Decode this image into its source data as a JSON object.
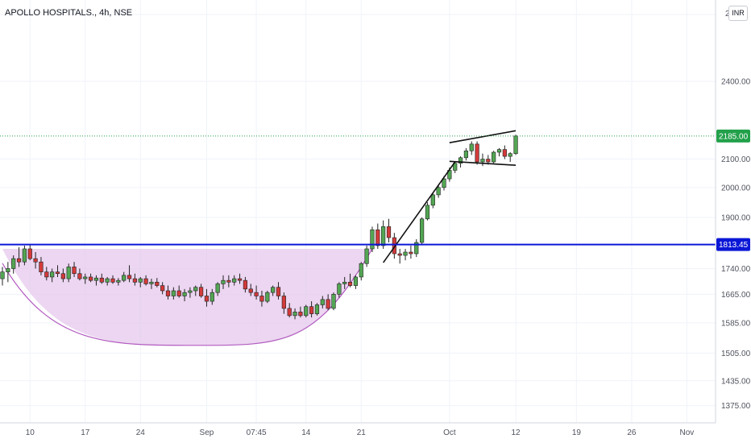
{
  "header": {
    "title": "APOLLO HOSPITALS., 4h, NSE",
    "currency": "INR"
  },
  "colors": {
    "up": "#53a653",
    "down": "#d33a3a",
    "wick": "#222222",
    "resistance": "#0b17d6",
    "cup_fill": "#e6c8ec",
    "cup_stroke": "#b25bc0",
    "last_price": "#22a04a",
    "grid": "#f0f3fa",
    "axis_text": "#50535e"
  },
  "chart_data": {
    "type": "candlestick",
    "title": "APOLLO HOSPITALS., 4h, NSE",
    "y_scale": "log",
    "ylim": [
      1335,
      2760
    ],
    "y_ticks": [
      {
        "value": 2400,
        "label": "2400.00"
      },
      {
        "value": 2100,
        "label": "2100.00"
      },
      {
        "value": 2000,
        "label": "2000.00"
      },
      {
        "value": 1900,
        "label": "1900.00"
      },
      {
        "value": 1740,
        "label": "1740.00"
      },
      {
        "value": 1665,
        "label": "1665.00"
      },
      {
        "value": 1585,
        "label": "1585.00"
      },
      {
        "value": 1505,
        "label": "1505.00"
      },
      {
        "value": 1435,
        "label": "1435.00"
      },
      {
        "value": 1375,
        "label": "1375.00"
      }
    ],
    "top_partial_label": "2",
    "x_range": [
      0,
      126
    ],
    "x_ticks": [
      {
        "i": 5,
        "label": "10"
      },
      {
        "i": 15,
        "label": "17"
      },
      {
        "i": 25,
        "label": "24"
      },
      {
        "i": 37,
        "label": "Sep"
      },
      {
        "i": 46,
        "label": "07:45"
      },
      {
        "i": 55,
        "label": "14"
      },
      {
        "i": 65,
        "label": "21"
      },
      {
        "i": 81,
        "label": "Oct"
      },
      {
        "i": 93,
        "label": "12"
      },
      {
        "i": 104,
        "label": "19"
      },
      {
        "i": 114,
        "label": "26"
      },
      {
        "i": 124,
        "label": "Nov"
      }
    ],
    "resistance_level": {
      "value": 1813.45,
      "label": "1813.45"
    },
    "last_price": {
      "value": 2185.0,
      "label": "2185.00"
    },
    "candles": [
      [
        1710,
        1745,
        1690,
        1730
      ],
      [
        1730,
        1760,
        1700,
        1740
      ],
      [
        1740,
        1780,
        1725,
        1770
      ],
      [
        1770,
        1805,
        1745,
        1760
      ],
      [
        1760,
        1810,
        1750,
        1800
      ],
      [
        1800,
        1815,
        1765,
        1770
      ],
      [
        1770,
        1790,
        1740,
        1760
      ],
      [
        1760,
        1775,
        1720,
        1730
      ],
      [
        1730,
        1745,
        1705,
        1715
      ],
      [
        1715,
        1740,
        1700,
        1730
      ],
      [
        1730,
        1750,
        1715,
        1725
      ],
      [
        1725,
        1740,
        1700,
        1710
      ],
      [
        1710,
        1755,
        1700,
        1745
      ],
      [
        1745,
        1760,
        1715,
        1725
      ],
      [
        1725,
        1740,
        1705,
        1710
      ],
      [
        1710,
        1725,
        1695,
        1715
      ],
      [
        1715,
        1725,
        1700,
        1705
      ],
      [
        1705,
        1720,
        1690,
        1712
      ],
      [
        1712,
        1725,
        1695,
        1700
      ],
      [
        1700,
        1715,
        1690,
        1710
      ],
      [
        1710,
        1720,
        1695,
        1700
      ],
      [
        1700,
        1712,
        1690,
        1705
      ],
      [
        1705,
        1730,
        1700,
        1720
      ],
      [
        1720,
        1750,
        1700,
        1710
      ],
      [
        1710,
        1725,
        1690,
        1700
      ],
      [
        1700,
        1715,
        1685,
        1710
      ],
      [
        1710,
        1720,
        1690,
        1695
      ],
      [
        1695,
        1710,
        1680,
        1700
      ],
      [
        1700,
        1712,
        1685,
        1690
      ],
      [
        1690,
        1700,
        1665,
        1675
      ],
      [
        1675,
        1690,
        1650,
        1660
      ],
      [
        1660,
        1685,
        1650,
        1675
      ],
      [
        1675,
        1690,
        1655,
        1660
      ],
      [
        1660,
        1680,
        1645,
        1670
      ],
      [
        1670,
        1685,
        1655,
        1675
      ],
      [
        1675,
        1690,
        1660,
        1685
      ],
      [
        1685,
        1695,
        1655,
        1660
      ],
      [
        1660,
        1680,
        1630,
        1645
      ],
      [
        1645,
        1680,
        1635,
        1670
      ],
      [
        1670,
        1700,
        1660,
        1695
      ],
      [
        1695,
        1720,
        1680,
        1705
      ],
      [
        1705,
        1720,
        1685,
        1700
      ],
      [
        1700,
        1720,
        1690,
        1710
      ],
      [
        1710,
        1725,
        1695,
        1705
      ],
      [
        1705,
        1715,
        1670,
        1680
      ],
      [
        1680,
        1695,
        1660,
        1670
      ],
      [
        1670,
        1690,
        1650,
        1660
      ],
      [
        1660,
        1675,
        1630,
        1645
      ],
      [
        1645,
        1675,
        1640,
        1670
      ],
      [
        1670,
        1690,
        1660,
        1685
      ],
      [
        1685,
        1700,
        1650,
        1660
      ],
      [
        1660,
        1670,
        1610,
        1625
      ],
      [
        1625,
        1640,
        1600,
        1605
      ],
      [
        1605,
        1625,
        1595,
        1615
      ],
      [
        1615,
        1630,
        1600,
        1605
      ],
      [
        1605,
        1635,
        1600,
        1630
      ],
      [
        1630,
        1645,
        1600,
        1610
      ],
      [
        1610,
        1640,
        1605,
        1635
      ],
      [
        1635,
        1660,
        1625,
        1650
      ],
      [
        1650,
        1665,
        1620,
        1625
      ],
      [
        1625,
        1670,
        1620,
        1665
      ],
      [
        1665,
        1700,
        1655,
        1695
      ],
      [
        1695,
        1715,
        1680,
        1700
      ],
      [
        1700,
        1725,
        1685,
        1690
      ],
      [
        1690,
        1720,
        1680,
        1715
      ],
      [
        1715,
        1760,
        1705,
        1755
      ],
      [
        1755,
        1810,
        1745,
        1800
      ],
      [
        1800,
        1870,
        1790,
        1860
      ],
      [
        1860,
        1880,
        1800,
        1810
      ],
      [
        1810,
        1890,
        1800,
        1870
      ],
      [
        1870,
        1895,
        1820,
        1835
      ],
      [
        1835,
        1850,
        1770,
        1785
      ],
      [
        1785,
        1800,
        1755,
        1780
      ],
      [
        1780,
        1800,
        1765,
        1790
      ],
      [
        1790,
        1810,
        1770,
        1785
      ],
      [
        1785,
        1830,
        1775,
        1820
      ],
      [
        1820,
        1900,
        1815,
        1895
      ],
      [
        1895,
        1950,
        1890,
        1940
      ],
      [
        1940,
        1980,
        1930,
        1975
      ],
      [
        1975,
        2010,
        1965,
        2000
      ],
      [
        2000,
        2040,
        1990,
        2030
      ],
      [
        2030,
        2070,
        2020,
        2060
      ],
      [
        2060,
        2090,
        2050,
        2085
      ],
      [
        2085,
        2110,
        2070,
        2105
      ],
      [
        2105,
        2140,
        2095,
        2130
      ],
      [
        2130,
        2165,
        2115,
        2155
      ],
      [
        2155,
        2165,
        2080,
        2090
      ],
      [
        2090,
        2120,
        2075,
        2100
      ],
      [
        2100,
        2115,
        2080,
        2090
      ],
      [
        2090,
        2130,
        2085,
        2125
      ],
      [
        2125,
        2140,
        2110,
        2135
      ],
      [
        2135,
        2150,
        2100,
        2110
      ],
      [
        2110,
        2125,
        2090,
        2120
      ],
      [
        2120,
        2190,
        2115,
        2185
      ]
    ],
    "cup": {
      "left_i": 0,
      "right_i": 67,
      "rim_value": 1800,
      "bottom_i": 35,
      "bottom_value": 1525
    },
    "pole_line": {
      "from": {
        "i": 69,
        "value": 1758
      },
      "to": {
        "i": 82,
        "value": 2090
      }
    },
    "flag_upper": {
      "from": {
        "i": 81,
        "value": 2160
      },
      "to": {
        "i": 93,
        "value": 2205
      }
    },
    "flag_lower": {
      "from": {
        "i": 81,
        "value": 2092
      },
      "to": {
        "i": 93,
        "value": 2078
      }
    }
  }
}
